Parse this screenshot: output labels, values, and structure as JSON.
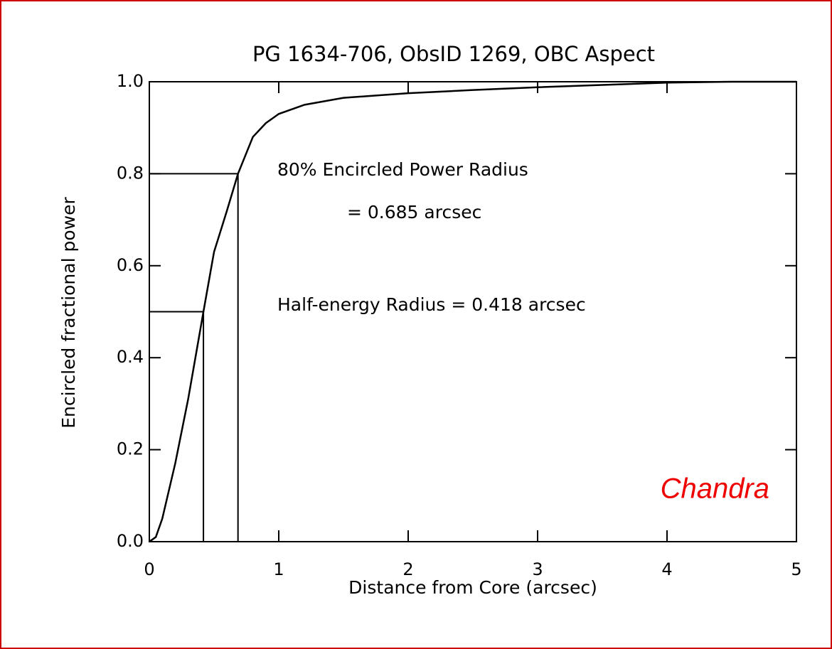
{
  "chart_data": {
    "type": "line",
    "title": "PG 1634-706, ObsID 1269, OBC Aspect",
    "x_label": "Distance from Core (arcsec)",
    "y_label": "Encircled fractional power",
    "annotations": [
      "80% Encircled Power Radius",
      "= 0.685 arcsec",
      "Half-energy Radius = 0.418 arcsec",
      "Chandra"
    ],
    "series": [
      {
        "color": "#000000",
        "x": [
          0,
          0.05,
          0.1,
          0.2,
          0.3,
          0.418,
          0.5,
          0.6,
          0.685,
          0.8,
          0.9,
          1.0,
          1.2,
          1.5,
          2.0,
          2.5,
          3.0,
          3.5,
          4.0,
          4.5,
          5.0
        ],
        "values": [
          0,
          0.01,
          0.05,
          0.17,
          0.31,
          0.5,
          0.63,
          0.72,
          0.8,
          0.88,
          0.91,
          0.93,
          0.95,
          0.965,
          0.975,
          0.982,
          0.988,
          0.993,
          0.998,
          1.0,
          1.0
        ]
      }
    ],
    "markers": [
      {
        "x": 0.418,
        "y": 0.5
      },
      {
        "x": 0.685,
        "y": 0.8
      }
    ],
    "xlim": [
      0,
      5
    ],
    "xticks": [
      0,
      1,
      2,
      3,
      4,
      5
    ],
    "ylim": [
      0,
      1
    ],
    "yticks": [
      {
        "value": 0,
        "label": "0.0"
      },
      0.2,
      0.4,
      0.6,
      0.8,
      {
        "value": 1,
        "label": "1.0"
      }
    ]
  }
}
